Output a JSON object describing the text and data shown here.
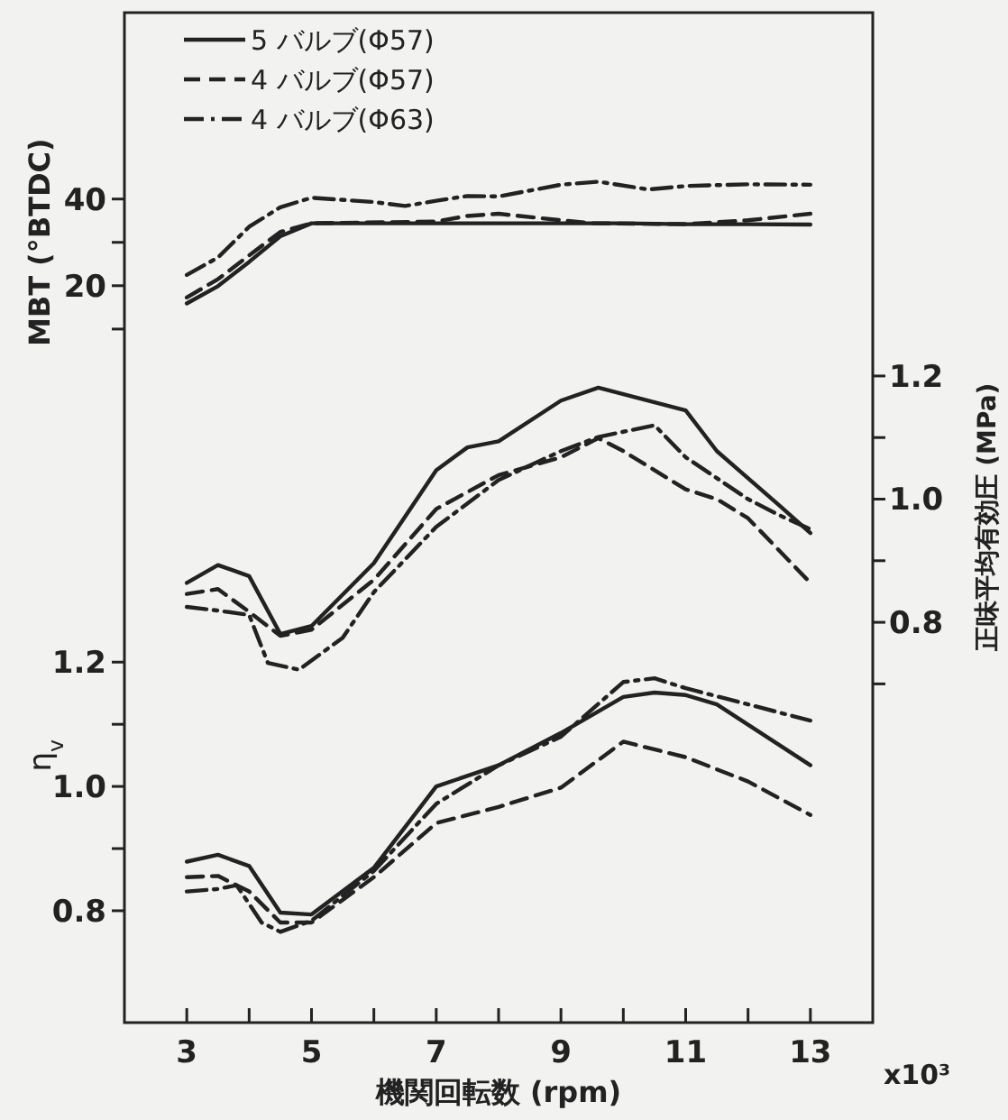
{
  "chart_data": {
    "type": "line",
    "xlabel": "機関回転数 (rpm)",
    "ylabel": "MBT (°BTDC)",
    "y2label": "正味平均有効圧 (MPa)",
    "y3label": "η$_{v}$",
    "annotations": [
      "x10³"
    ],
    "xlim": [
      2,
      14
    ],
    "xticks": [
      3,
      {
        "value": 4,
        "label": null
      },
      5,
      {
        "value": 6,
        "label": null
      },
      7,
      {
        "value": 8,
        "label": null
      },
      9,
      {
        "value": 10,
        "label": null
      },
      11,
      {
        "value": 12,
        "label": null
      },
      13
    ],
    "ylim": [
      -150,
      83
    ],
    "yticks": [
      {
        "value": 10,
        "label": null
      },
      20,
      {
        "value": 30,
        "label": null
      },
      40
    ],
    "y2lim": [
      0.15,
      1.79
    ],
    "y2ticks": [
      {
        "value": 0.7,
        "label": null
      },
      0.8,
      {
        "value": 0.9,
        "label": null
      },
      {
        "value": 1.0,
        "label": "1.0"
      },
      {
        "value": 1.1,
        "label": null
      },
      1.2
    ],
    "y3lim": [
      0.62,
      2.245
    ],
    "y3ticks": [
      0.8,
      {
        "value": 0.9,
        "label": null
      },
      {
        "value": 1.0,
        "label": "1.0"
      },
      {
        "value": 1.1,
        "label": null
      },
      1.2
    ],
    "legend": "top left",
    "grid": false,
    "marker": "none",
    "series": [
      {
        "name": "5 バルブ(Φ57)",
        "color": "#222222",
        "line_style": "solid",
        "axis": "y",
        "x": [
          3,
          3.5,
          4,
          4.5,
          5,
          6,
          7,
          8,
          9,
          10,
          11,
          12,
          13
        ],
        "values": [
          15.9,
          19.9,
          25.5,
          31.4,
          34.4,
          34.4,
          34.4,
          34.4,
          34.4,
          34.4,
          34.2,
          34.2,
          34.1
        ]
      },
      {
        "name": "4 バルブ(Φ57)",
        "color": "#222222",
        "line_style": "dashed",
        "axis": "y",
        "x": [
          3,
          3.5,
          4,
          4.5,
          5,
          7,
          7.5,
          8,
          9,
          9.5,
          11,
          12,
          13
        ],
        "values": [
          17.3,
          21.5,
          27,
          32.4,
          34.4,
          34.8,
          36.1,
          36.6,
          35.1,
          34.4,
          34.2,
          35.1,
          36.6
        ]
      },
      {
        "name": "4 バルブ(Φ63)",
        "color": "#222222",
        "line_style": "dashdot",
        "axis": "y",
        "x": [
          3,
          3.5,
          4,
          4.5,
          5,
          6,
          6.5,
          7,
          7.5,
          8,
          9,
          9.6,
          10.4,
          11,
          12,
          13
        ],
        "values": [
          22.5,
          26.5,
          33.6,
          38.1,
          40.3,
          39.3,
          38.4,
          39.6,
          40.7,
          40.6,
          43.3,
          44,
          42.2,
          43,
          43.4,
          43.3
        ]
      },
      {
        "color": "#222222",
        "line_style": "solid",
        "axis": "y2",
        "x": [
          3,
          3.5,
          4,
          4.5,
          5,
          6,
          7,
          7.5,
          8,
          9,
          9.6,
          11,
          11.5,
          12.5,
          13
        ],
        "values": [
          0.864,
          0.893,
          0.875,
          0.781,
          0.794,
          0.896,
          1.047,
          1.084,
          1.094,
          1.16,
          1.181,
          1.144,
          1.078,
          0.99,
          0.945
        ]
      },
      {
        "color": "#222222",
        "line_style": "dashed",
        "axis": "y2",
        "x": [
          3,
          3.5,
          4,
          4.5,
          5,
          6,
          7,
          8,
          9,
          9.6,
          10,
          11,
          11.5,
          12,
          13
        ],
        "values": [
          0.846,
          0.854,
          0.817,
          0.778,
          0.788,
          0.869,
          0.984,
          1.039,
          1.068,
          1.099,
          1.078,
          1.016,
          1.0,
          0.969,
          0.864
        ]
      },
      {
        "color": "#222222",
        "line_style": "dashdot",
        "axis": "y2",
        "x": [
          3,
          3.5,
          4,
          4.3,
          4.8,
          5.5,
          6,
          7,
          8,
          9,
          9.6,
          10.5,
          11,
          12,
          12.5,
          13
        ],
        "values": [
          0.825,
          0.819,
          0.812,
          0.734,
          0.723,
          0.775,
          0.849,
          0.955,
          1.031,
          1.078,
          1.101,
          1.12,
          1.068,
          1.0,
          0.974,
          0.951
        ]
      },
      {
        "color": "#222222",
        "line_style": "solid",
        "axis": "y3",
        "x": [
          3,
          3.5,
          4,
          4.5,
          5,
          6,
          7,
          8,
          9,
          10,
          10.5,
          11,
          11.5,
          13
        ],
        "values": [
          0.879,
          0.89,
          0.872,
          0.797,
          0.794,
          0.869,
          1.0,
          1.034,
          1.086,
          1.144,
          1.151,
          1.147,
          1.132,
          1.034
        ]
      },
      {
        "color": "#222222",
        "line_style": "dashed",
        "axis": "y3",
        "x": [
          3,
          3.5,
          4,
          4.5,
          5,
          6,
          7,
          8,
          9,
          10,
          11,
          12,
          13
        ],
        "values": [
          0.854,
          0.856,
          0.831,
          0.781,
          0.781,
          0.854,
          0.941,
          0.967,
          0.998,
          1.072,
          1.047,
          1.008,
          0.954
        ]
      },
      {
        "color": "#222222",
        "line_style": "dashdot",
        "axis": "y3",
        "x": [
          3,
          3.5,
          3.8,
          4.2,
          4.5,
          5,
          6,
          7,
          8,
          9,
          10,
          10.5,
          11,
          12,
          13
        ],
        "values": [
          0.831,
          0.835,
          0.841,
          0.781,
          0.766,
          0.784,
          0.864,
          0.972,
          1.034,
          1.08,
          1.168,
          1.174,
          1.158,
          1.132,
          1.106
        ]
      }
    ]
  }
}
